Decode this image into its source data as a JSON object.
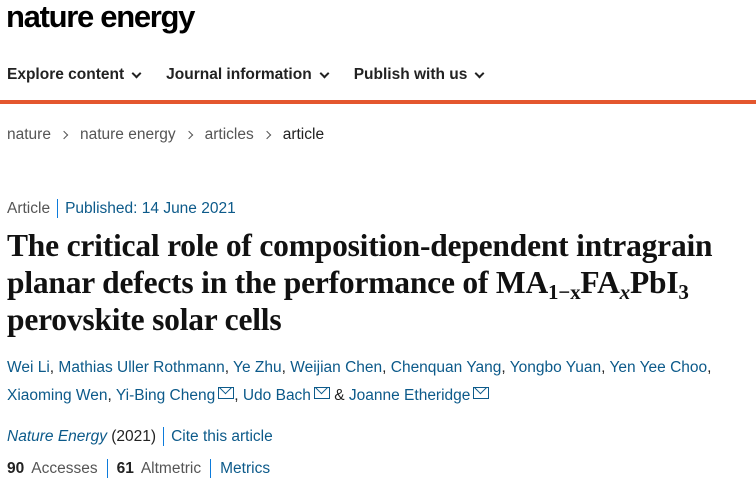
{
  "header": {
    "logo": "nature energy"
  },
  "nav": {
    "items": [
      {
        "label": "Explore content"
      },
      {
        "label": "Journal information"
      },
      {
        "label": "Publish with us"
      }
    ]
  },
  "breadcrumb": [
    "nature",
    "nature energy",
    "articles",
    "article"
  ],
  "article": {
    "type": "Article",
    "published": "Published: 14 June 2021",
    "title": {
      "line1": "The critical role of composition-dependent intragrain",
      "line2_pre": "planar defects in the performance of MA",
      "sub1": "1−x",
      "fa": "FA",
      "sub2": "x",
      "pbi": "PbI",
      "sub3": "3",
      "line3": "perovskite solar cells"
    },
    "authors": [
      "Wei Li",
      "Mathias Uller Rothmann",
      "Ye Zhu",
      "Weijian Chen",
      "Chenquan Yang",
      "Yongbo Yuan",
      "Yen Yee Choo",
      "Xiaoming Wen",
      "Yi-Bing Cheng",
      "Udo Bach",
      "Joanne Etheridge"
    ],
    "author_separator": ", ",
    "author_and": " & ",
    "journal": "Nature Energy",
    "year": "(2021)",
    "cite": "Cite this article",
    "accesses_value": "90",
    "accesses_label": "Accesses",
    "altmetric_value": "61",
    "altmetric_label": "Altmetric",
    "metrics_link": "Metrics"
  },
  "colors": {
    "accent_bar": "#e4572e",
    "link": "#0c5a8a",
    "divider": "#0c7bdc"
  }
}
